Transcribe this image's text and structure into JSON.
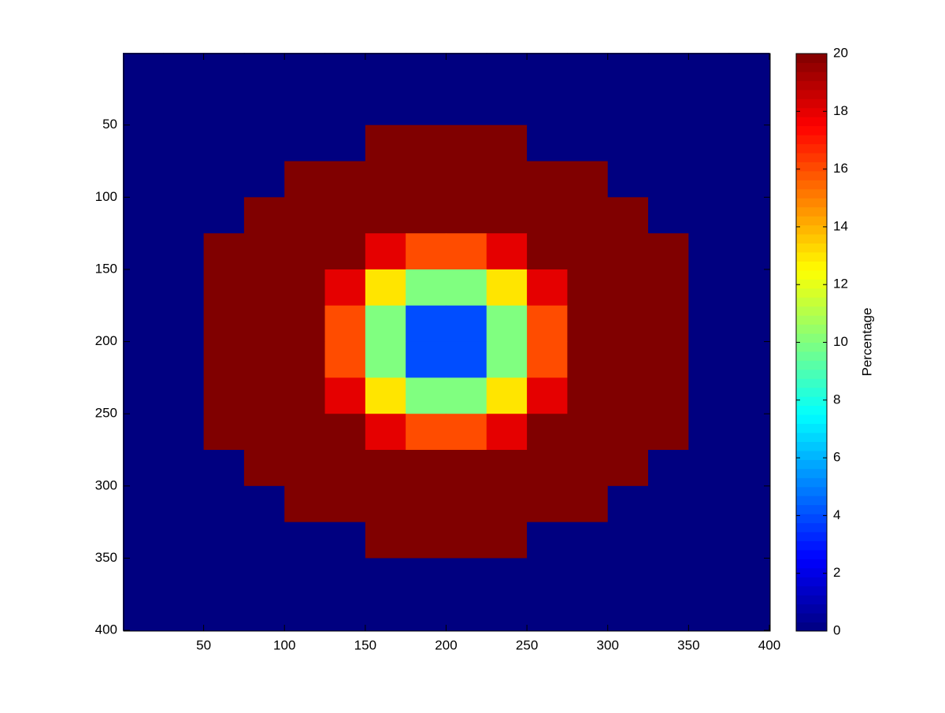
{
  "chart_data": {
    "type": "heatmap",
    "colormap": "jet",
    "x": [
      12.5,
      37.5,
      62.5,
      87.5,
      112.5,
      137.5,
      162.5,
      187.5,
      212.5,
      237.5,
      262.5,
      287.5,
      312.5,
      337.5,
      362.5,
      387.5
    ],
    "y": [
      12.5,
      37.5,
      62.5,
      87.5,
      112.5,
      137.5,
      162.5,
      187.5,
      212.5,
      237.5,
      262.5,
      287.5,
      312.5,
      337.5,
      362.5,
      387.5
    ],
    "values": [
      [
        0,
        0,
        0,
        0,
        0,
        0,
        0,
        0,
        0,
        0,
        0,
        0,
        0,
        0,
        0,
        0
      ],
      [
        0,
        0,
        0,
        0,
        0,
        0,
        0,
        0,
        0,
        0,
        0,
        0,
        0,
        0,
        0,
        0
      ],
      [
        0,
        0,
        0,
        0,
        0,
        0,
        20,
        20,
        20,
        20,
        0,
        0,
        0,
        0,
        0,
        0
      ],
      [
        0,
        0,
        0,
        0,
        20,
        20,
        20,
        20,
        20,
        20,
        20,
        20,
        0,
        0,
        0,
        0
      ],
      [
        0,
        0,
        0,
        20,
        20,
        20,
        20,
        20,
        20,
        20,
        20,
        20,
        20,
        0,
        0,
        0
      ],
      [
        0,
        0,
        20,
        20,
        20,
        20,
        18,
        16,
        16,
        18,
        20,
        20,
        20,
        20,
        0,
        0
      ],
      [
        0,
        0,
        20,
        20,
        20,
        18,
        13,
        10,
        10,
        13,
        18,
        20,
        20,
        20,
        0,
        0
      ],
      [
        0,
        0,
        20,
        20,
        20,
        16,
        10,
        4,
        4,
        10,
        16,
        20,
        20,
        20,
        0,
        0
      ],
      [
        0,
        0,
        20,
        20,
        20,
        16,
        10,
        4,
        4,
        10,
        16,
        20,
        20,
        20,
        0,
        0
      ],
      [
        0,
        0,
        20,
        20,
        20,
        18,
        13,
        10,
        10,
        13,
        18,
        20,
        20,
        20,
        0,
        0
      ],
      [
        0,
        0,
        20,
        20,
        20,
        20,
        18,
        16,
        16,
        18,
        20,
        20,
        20,
        20,
        0,
        0
      ],
      [
        0,
        0,
        0,
        20,
        20,
        20,
        20,
        20,
        20,
        20,
        20,
        20,
        20,
        0,
        0,
        0
      ],
      [
        0,
        0,
        0,
        0,
        20,
        20,
        20,
        20,
        20,
        20,
        20,
        20,
        0,
        0,
        0,
        0
      ],
      [
        0,
        0,
        0,
        0,
        0,
        0,
        20,
        20,
        20,
        20,
        0,
        0,
        0,
        0,
        0,
        0
      ],
      [
        0,
        0,
        0,
        0,
        0,
        0,
        0,
        0,
        0,
        0,
        0,
        0,
        0,
        0,
        0,
        0
      ],
      [
        0,
        0,
        0,
        0,
        0,
        0,
        0,
        0,
        0,
        0,
        0,
        0,
        0,
        0,
        0,
        0
      ]
    ],
    "xlim": [
      0.5,
      400.5
    ],
    "ylim": [
      0.5,
      400.5
    ],
    "y_reversed": true,
    "xticks": [
      50,
      100,
      150,
      200,
      250,
      300,
      350,
      400
    ],
    "yticks": [
      50,
      100,
      150,
      200,
      250,
      300,
      350,
      400
    ],
    "clim": [
      0,
      20
    ],
    "cticks": [
      0,
      2,
      4,
      6,
      8,
      10,
      12,
      14,
      16,
      18,
      20
    ],
    "colorbar_label": "Percentage"
  }
}
